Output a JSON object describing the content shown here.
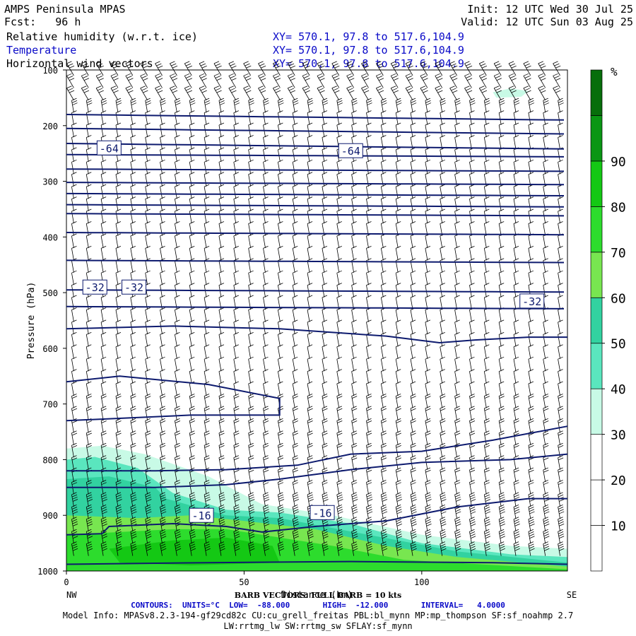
{
  "header": {
    "model": "AMPS Peninsula MPAS",
    "fcst_label": "Fcst:",
    "fcst_value": "96 h",
    "init": "Init: 12 UTC Wed 30 Jul 25",
    "valid": "Valid: 12 UTC Sun 03 Aug 25",
    "fields": [
      {
        "name": "Relative humidity (w.r.t. ice)",
        "xy": "XY= 570.1, 97.8 to 517.6,104.9"
      },
      {
        "name": "Temperature",
        "xy": "XY= 570.1, 97.8 to 517.6,104.9"
      },
      {
        "name": "Horizontal wind vectors",
        "xy": "XY= 570.1, 97.8 to 517.6,104.9"
      }
    ]
  },
  "chart_data": {
    "type": "heatmap",
    "xlabel": "Distance (km)",
    "ylabel": "Pressure (hPa)",
    "xlim": [
      0,
      141
    ],
    "ylim": [
      1000,
      100
    ],
    "x_ticks": [
      0,
      50,
      100
    ],
    "y_ticks": [
      100,
      200,
      300,
      400,
      500,
      600,
      700,
      800,
      900,
      1000
    ],
    "x_end_labels": {
      "left": "NW",
      "right": "SE"
    },
    "colorbar": {
      "unit": "%",
      "levels": [
        10,
        20,
        30,
        40,
        50,
        60,
        70,
        80,
        90
      ],
      "colors": [
        "#ffffff",
        "#ffffff",
        "#ffffff",
        "#c8fae6",
        "#5ae6be",
        "#32d2a0",
        "#78e650",
        "#2ddc2d",
        "#14c814",
        "#0a9614",
        "#076e0b"
      ]
    },
    "temperature_contours": {
      "units": "°C",
      "low": -88.0,
      "high": -12.0,
      "interval": 4.0,
      "labels": [
        {
          "value": "-64",
          "x": 12,
          "p": 240
        },
        {
          "value": "-64",
          "x": 80,
          "p": 245
        },
        {
          "value": "-32",
          "x": 8,
          "p": 490
        },
        {
          "value": "-32",
          "x": 19,
          "p": 490
        },
        {
          "value": "-32",
          "x": 131,
          "p": 515
        },
        {
          "value": "-16",
          "x": 38,
          "p": 900
        },
        {
          "value": "-16",
          "x": 72,
          "p": 895
        }
      ]
    },
    "wind_barbs": {
      "note": "BARB VECTORS: FULL BARB = 10 kts"
    },
    "footer": {
      "contours_line": "CONTOURS:  UNITS=°C  LOW=  -88.000       HIGH=  -12.000       INTERVAL=   4.0000",
      "model_info": "Model Info: MPASv8.2.3-194-gf29cd82c CU:cu_grell_freitas PBL:bl_mynn MP:mp_thompson SF:sf_noahmp 2.7",
      "model_info2": "LW:rrtmg_lw SW:rrtmg_sw SFLAY:sf_mynn"
    }
  }
}
